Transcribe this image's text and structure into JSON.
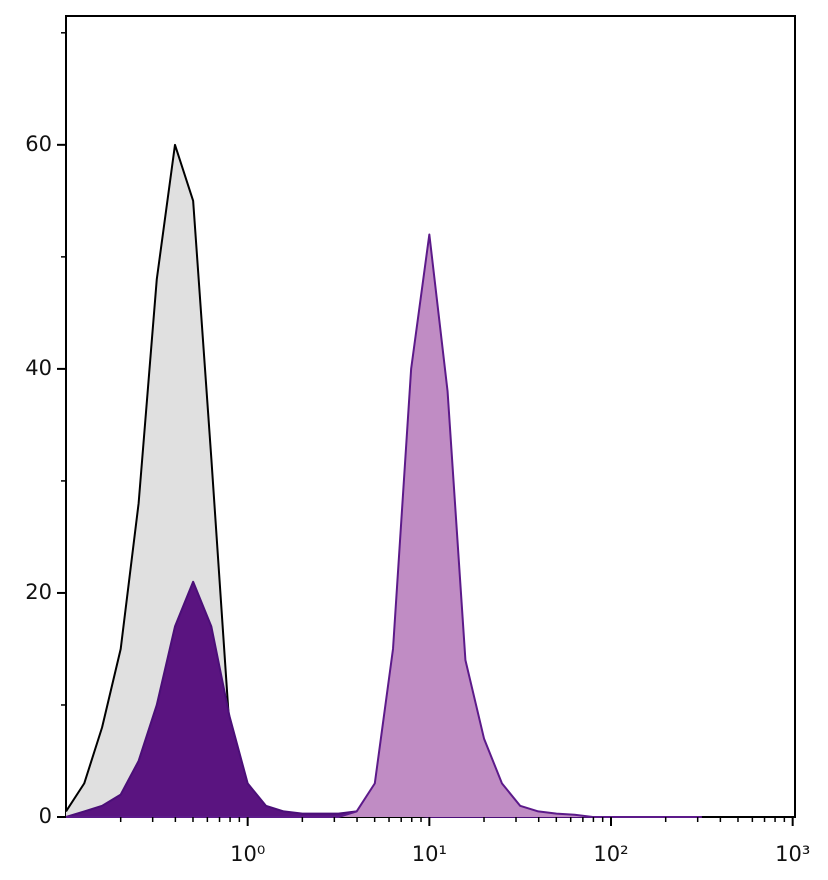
{
  "chart_data": {
    "type": "histogram",
    "x": [
      0.1,
      0.126,
      0.158,
      0.2,
      0.251,
      0.316,
      0.398,
      0.501,
      0.631,
      0.794,
      1,
      1.26,
      1.58,
      2,
      2.51,
      3.16,
      3.98,
      5.01,
      6.31,
      7.94,
      10,
      12.6,
      15.8,
      20,
      25.1,
      31.6,
      39.8,
      50.1,
      63.1,
      79.4,
      100,
      126,
      158,
      200,
      251,
      316
    ],
    "series": [
      {
        "color": "#e0e0e0",
        "stroke": "#000000",
        "values": [
          0.5,
          3,
          8,
          15,
          28,
          48,
          60,
          55,
          32,
          8,
          2,
          0.5,
          0.3,
          0,
          0,
          0,
          0,
          0,
          0,
          0,
          0,
          0,
          0,
          0,
          0,
          0,
          0,
          0,
          0,
          0,
          0,
          0,
          0,
          0,
          0,
          0
        ]
      },
      {
        "color": "#5a1480",
        "stroke": "#4b0f78",
        "values": [
          0,
          0.5,
          1,
          2,
          5,
          10,
          17,
          21,
          17,
          9,
          3,
          1,
          0.5,
          0.3,
          0.3,
          0.3,
          0.5,
          0.5,
          0.3,
          0.2,
          0,
          0,
          0,
          0,
          0,
          0,
          0,
          0,
          0,
          0,
          0,
          0,
          0,
          0,
          0,
          0
        ]
      },
      {
        "color": "#c08cc4",
        "stroke": "#5c1a8a",
        "values": [
          0,
          0,
          0,
          0,
          0,
          0,
          0,
          0,
          0,
          0,
          0,
          0,
          0,
          0,
          0,
          0,
          0.5,
          3,
          15,
          40,
          52,
          38,
          14,
          7,
          3,
          1,
          0.5,
          0.3,
          0.2,
          0,
          0,
          0,
          0,
          0,
          0,
          0
        ]
      }
    ],
    "xscale": "log",
    "xlim": [
      0.1,
      1030
    ],
    "ylim": [
      0,
      71.5
    ],
    "xticks": [
      {
        "value": 1,
        "label": "10⁰"
      },
      {
        "value": 10,
        "label": "10¹"
      },
      {
        "value": 100,
        "label": "10²"
      },
      {
        "value": 1000,
        "label": "10³"
      }
    ],
    "xminorticks": [
      0.2,
      0.3,
      0.4,
      0.5,
      0.6,
      0.7,
      0.8,
      0.9,
      2,
      3,
      4,
      5,
      6,
      7,
      8,
      9,
      20,
      30,
      40,
      50,
      60,
      70,
      80,
      90,
      200,
      300,
      400,
      500,
      600,
      700,
      800,
      900
    ],
    "yticks": [
      0,
      20,
      40,
      60
    ],
    "yminorticks": [
      10,
      30,
      50,
      70
    ]
  }
}
